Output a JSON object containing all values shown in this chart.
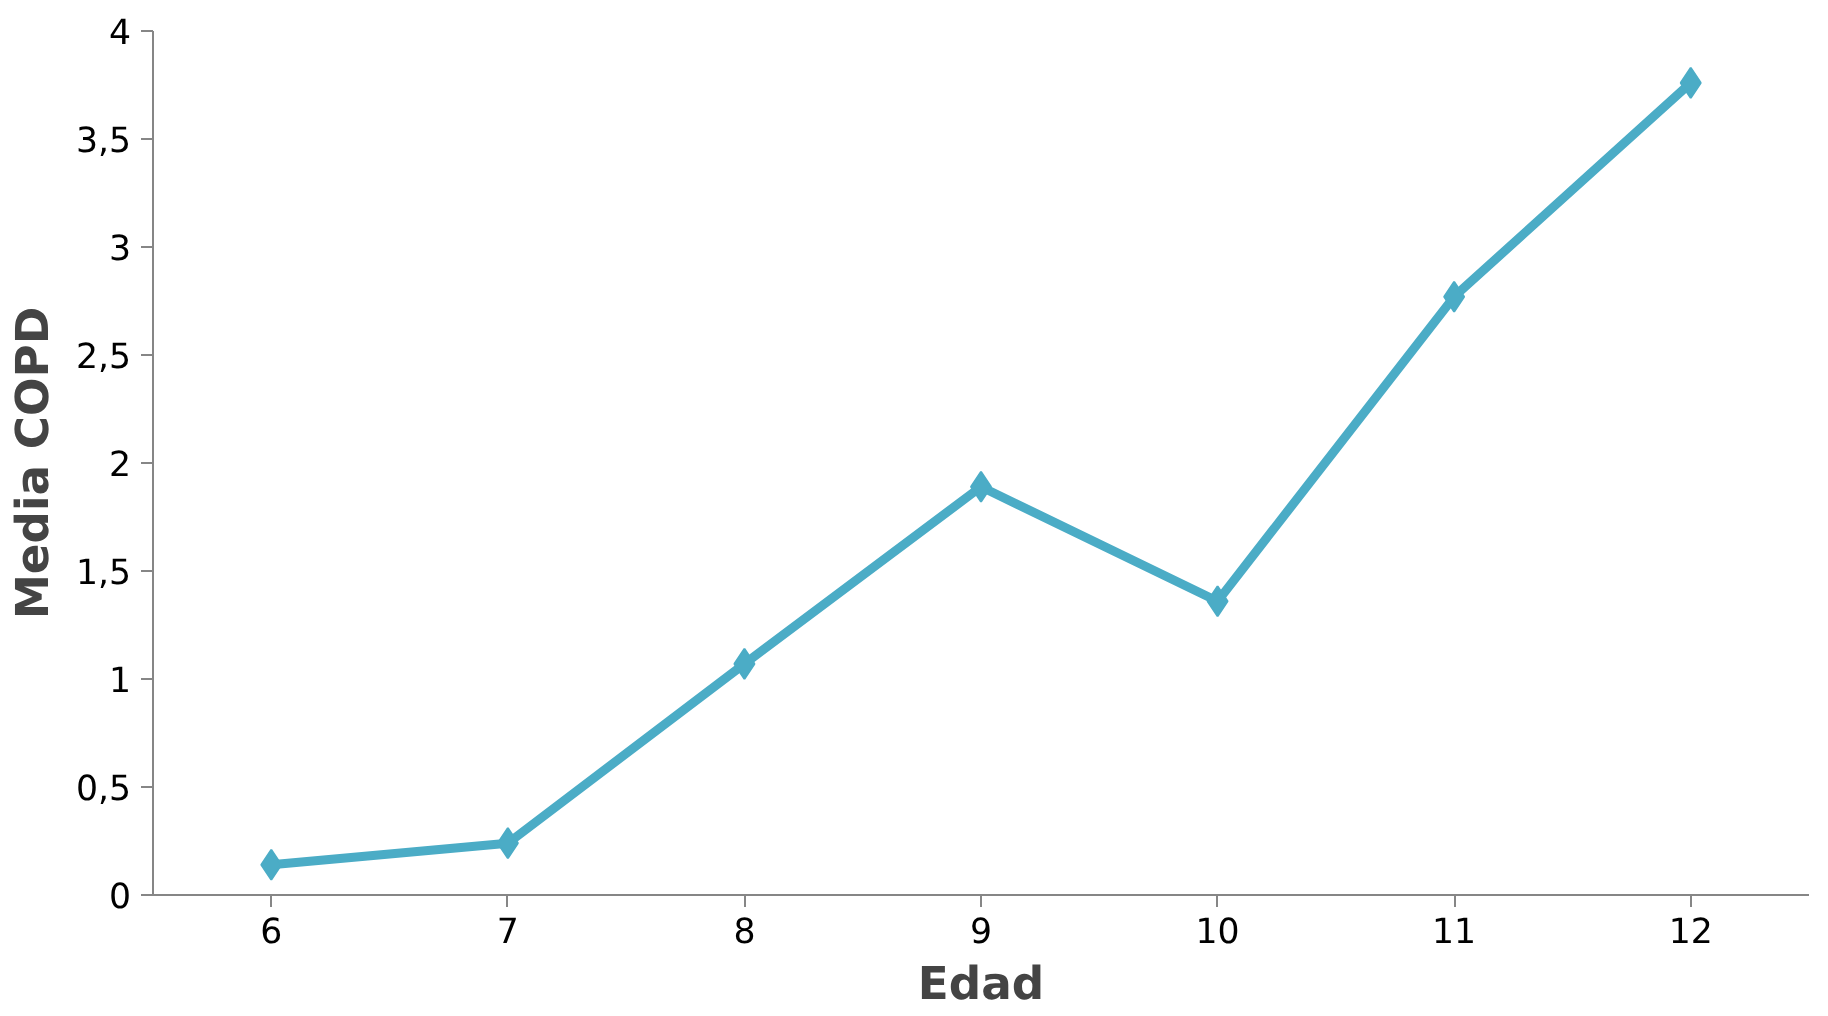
{
  "chart_data": {
    "type": "line",
    "xlabel": "Edad",
    "ylabel": "Media COPD",
    "categories": [
      "6",
      "7",
      "8",
      "9",
      "10",
      "11",
      "12"
    ],
    "series": [
      {
        "color": "#4bacc6",
        "values": [
          0.14,
          0.24,
          1.07,
          1.89,
          1.36,
          2.77,
          3.76
        ]
      }
    ],
    "ylim": [
      0,
      4
    ],
    "yticks": [
      0,
      {
        "value": 0.5,
        "label": "0,5"
      },
      1,
      {
        "value": 1.5,
        "label": "1,5"
      },
      2,
      {
        "value": 2.5,
        "label": "2,5"
      },
      3,
      {
        "value": 3.5,
        "label": "3,5"
      },
      4
    ],
    "grid": false,
    "marker": "diamond",
    "line_style": "solid"
  }
}
